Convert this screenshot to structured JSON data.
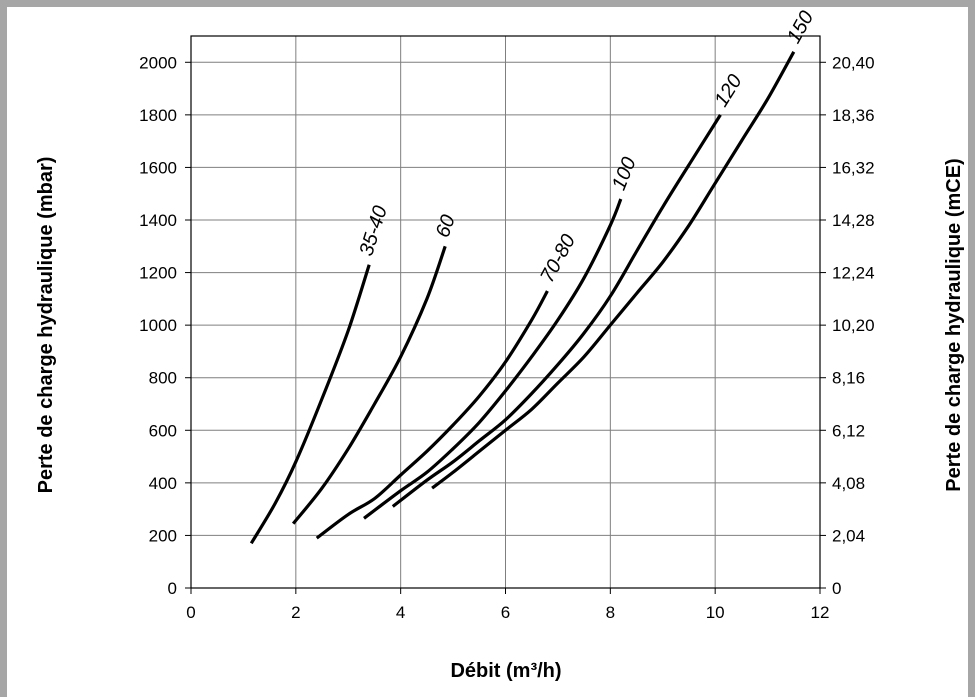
{
  "chart_data": {
    "type": "line",
    "xlabel": "Débit (m³/h)",
    "ylabel_left": "Perte de charge hydraulique (mbar)",
    "ylabel_right": "Perte de charge hydraulique (mCE)",
    "xlim": [
      0,
      12
    ],
    "ylim": [
      0,
      2100
    ],
    "x_ticks": [
      "0",
      "2",
      "4",
      "6",
      "8",
      "10",
      "12"
    ],
    "y_ticks_left": [
      "0",
      "200",
      "400",
      "600",
      "800",
      "1000",
      "1200",
      "1400",
      "1600",
      "1800",
      "2000"
    ],
    "y_ticks_right": [
      "0",
      "2,04",
      "4,08",
      "6,12",
      "8,16",
      "10,20",
      "12,24",
      "14,28",
      "16,32",
      "18,36",
      "20,40"
    ],
    "grid": true,
    "series": [
      {
        "name": "35-40",
        "x": [
          1.15,
          1.6,
          2.0,
          2.5,
          3.0,
          3.4
        ],
        "y": [
          170,
          320,
          480,
          720,
          980,
          1230
        ]
      },
      {
        "name": "60",
        "x": [
          1.95,
          2.5,
          3.0,
          3.5,
          4.0,
          4.5,
          4.85
        ],
        "y": [
          245,
          380,
          530,
          700,
          880,
          1100,
          1300
        ]
      },
      {
        "name": "70-80",
        "x": [
          2.4,
          3.0,
          3.5,
          4.0,
          4.5,
          5.0,
          5.5,
          6.0,
          6.5,
          6.8
        ],
        "y": [
          190,
          280,
          340,
          430,
          520,
          620,
          730,
          860,
          1020,
          1130
        ]
      },
      {
        "name": "100",
        "x": [
          3.3,
          4.0,
          4.5,
          5.0,
          5.5,
          6.0,
          6.5,
          7.0,
          7.5,
          8.0,
          8.2
        ],
        "y": [
          265,
          370,
          440,
          530,
          630,
          750,
          880,
          1020,
          1180,
          1380,
          1480
        ]
      },
      {
        "name": "120",
        "x": [
          3.85,
          4.5,
          5.0,
          5.5,
          6.0,
          6.5,
          7.0,
          7.5,
          8.0,
          8.5,
          9.0,
          9.5,
          10.1
        ],
        "y": [
          310,
          410,
          480,
          560,
          640,
          740,
          850,
          970,
          1110,
          1280,
          1450,
          1610,
          1800
        ]
      },
      {
        "name": "150",
        "x": [
          4.6,
          5.0,
          5.5,
          6.0,
          6.5,
          7.0,
          7.5,
          8.0,
          8.5,
          9.0,
          9.5,
          10.0,
          10.5,
          11.0,
          11.5
        ],
        "y": [
          380,
          440,
          520,
          600,
          680,
          780,
          880,
          1000,
          1120,
          1240,
          1380,
          1540,
          1700,
          1860,
          2040
        ]
      }
    ]
  }
}
